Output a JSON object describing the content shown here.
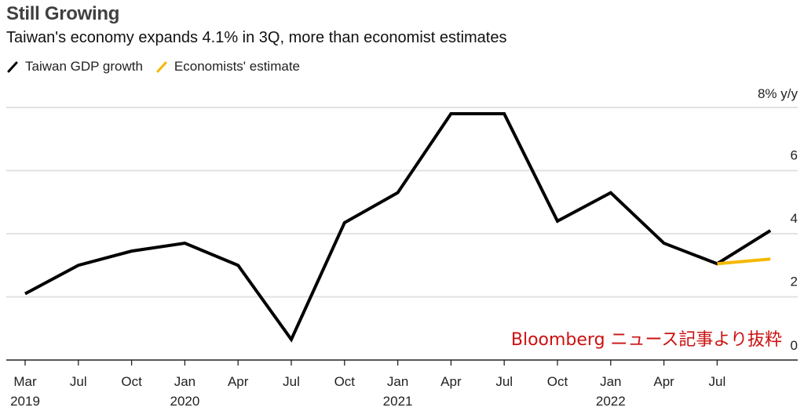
{
  "header": {
    "title": "Still Growing",
    "subtitle": "Taiwan's economy expands 4.1% in 3Q, more than economist estimates"
  },
  "legend": [
    {
      "label": "Taiwan GDP growth",
      "color": "#000000"
    },
    {
      "label": "Economists' estimate",
      "color": "#f5b800"
    }
  ],
  "watermark": "Bloomberg ニュース記事より抜粋",
  "chart_data": {
    "type": "line",
    "title": "Still Growing",
    "subtitle": "Taiwan's economy expands 4.1% in 3Q, more than economist estimates",
    "xlabel": "",
    "ylabel": "% y/y",
    "ylim": [
      0,
      8
    ],
    "yticks": [
      0,
      2,
      4,
      6,
      8
    ],
    "ytick_labels": [
      "0",
      "2",
      "4",
      "6",
      "8% y/y"
    ],
    "grid": true,
    "legend_position": "top-left",
    "x": [
      "1Q19",
      "2Q19",
      "3Q19",
      "4Q19",
      "1Q20",
      "2Q20",
      "3Q20",
      "4Q20",
      "1Q21",
      "2Q21",
      "3Q21",
      "4Q21",
      "1Q22",
      "2Q22",
      "3Q22"
    ],
    "xtick_labels": [
      {
        "month": "Mar",
        "year": "2019"
      },
      {
        "month": "Jul",
        "year": ""
      },
      {
        "month": "Oct",
        "year": ""
      },
      {
        "month": "Jan",
        "year": "2020"
      },
      {
        "month": "Apr",
        "year": ""
      },
      {
        "month": "Jul",
        "year": ""
      },
      {
        "month": "Oct",
        "year": ""
      },
      {
        "month": "Jan",
        "year": "2021"
      },
      {
        "month": "Apr",
        "year": ""
      },
      {
        "month": "Jul",
        "year": ""
      },
      {
        "month": "Oct",
        "year": ""
      },
      {
        "month": "Jan",
        "year": "2022"
      },
      {
        "month": "Apr",
        "year": ""
      },
      {
        "month": "Jul",
        "year": ""
      }
    ],
    "series": [
      {
        "name": "Taiwan GDP growth",
        "color": "#000000",
        "x_index": [
          0,
          1,
          2,
          3,
          4,
          5,
          6,
          7,
          8,
          9,
          10,
          11,
          12,
          13,
          14
        ],
        "values": [
          2.1,
          3.0,
          3.45,
          3.7,
          3.0,
          0.65,
          4.35,
          5.3,
          7.8,
          7.8,
          4.4,
          5.3,
          3.7,
          3.05,
          4.1
        ]
      },
      {
        "name": "Economists' estimate",
        "color": "#f5b800",
        "x_index": [
          13,
          14
        ],
        "values": [
          3.05,
          3.2
        ]
      }
    ]
  }
}
